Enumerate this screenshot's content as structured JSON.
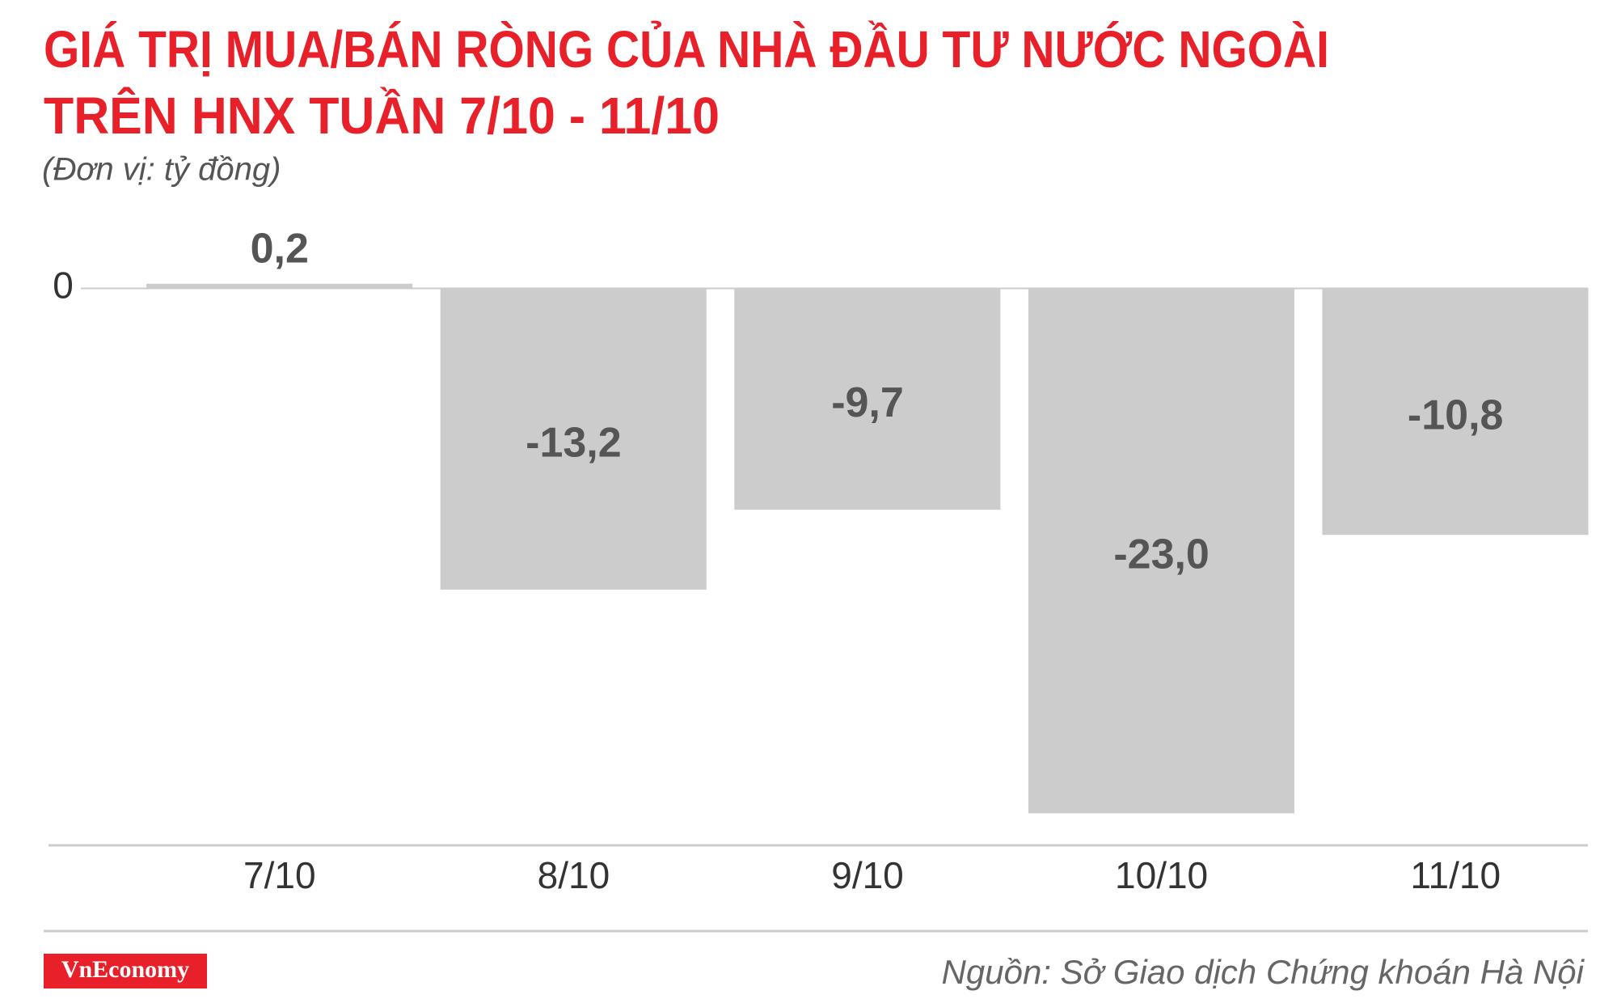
{
  "chart_data": {
    "type": "bar",
    "title": [
      "GIÁ TRỊ MUA/BÁN RÒNG CỦA NHÀ ĐẦU TƯ NƯỚC NGOÀI",
      "TRÊN HNX TUẦN 7/10 - 11/10"
    ],
    "subtitle": "(Đơn vị: tỷ đồng)",
    "categories": [
      "7/10",
      "8/10",
      "9/10",
      "10/10",
      "11/10"
    ],
    "values": [
      0.2,
      -13.2,
      -9.7,
      -23.0,
      -10.8
    ],
    "value_labels": [
      "0,2",
      "-13,2",
      "-9,7",
      "-23,0",
      "-10,8"
    ],
    "color": "#cccccc",
    "ylim": [
      -24.4,
      2
    ],
    "yticks": [
      0
    ],
    "source": "Nguồn: Sở Giao dịch Chứng khoán Hà Nội",
    "logo": "VnEconomy"
  }
}
